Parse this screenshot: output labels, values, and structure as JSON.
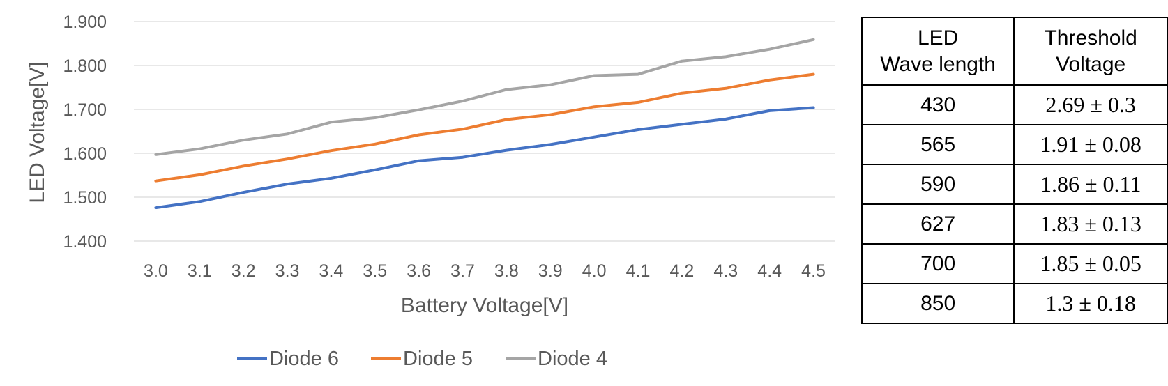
{
  "chart_data": {
    "type": "line",
    "xlabel": "Battery Voltage[V]",
    "ylabel": "LED Voltage[V]",
    "categories": [
      "3.0",
      "3.1",
      "3.2",
      "3.3",
      "3.4",
      "3.5",
      "3.6",
      "3.7",
      "3.8",
      "3.9",
      "4.0",
      "4.1",
      "4.2",
      "4.3",
      "4.4",
      "4.5"
    ],
    "ylim": [
      1.4,
      1.9
    ],
    "yticks": [
      "1.400",
      "1.500",
      "1.600",
      "1.700",
      "1.800",
      "1.900"
    ],
    "grid": true,
    "legend_position": "bottom",
    "series": [
      {
        "name": "Diode 6",
        "color": "#4472C4",
        "values": [
          1.476,
          1.49,
          1.511,
          1.53,
          1.543,
          1.562,
          1.583,
          1.591,
          1.607,
          1.62,
          1.637,
          1.654,
          1.666,
          1.678,
          1.697,
          1.704
        ]
      },
      {
        "name": "Diode 5",
        "color": "#ED7D31",
        "values": [
          1.537,
          1.551,
          1.571,
          1.587,
          1.606,
          1.621,
          1.642,
          1.655,
          1.677,
          1.688,
          1.706,
          1.716,
          1.737,
          1.748,
          1.767,
          1.78
        ]
      },
      {
        "name": "Diode 4",
        "color": "#A5A5A5",
        "values": [
          1.597,
          1.61,
          1.63,
          1.644,
          1.671,
          1.681,
          1.699,
          1.719,
          1.745,
          1.756,
          1.777,
          1.78,
          1.81,
          1.82,
          1.837,
          1.859
        ]
      }
    ]
  },
  "table": {
    "headers": [
      {
        "line1": "LED",
        "line2": "Wave length"
      },
      {
        "line1": "Threshold",
        "line2": "Voltage"
      }
    ],
    "rows": [
      {
        "wavelength": "430",
        "threshold": "2.69 ± 0.3"
      },
      {
        "wavelength": "565",
        "threshold": "1.91 ± 0.08"
      },
      {
        "wavelength": "590",
        "threshold": "1.86 ± 0.11"
      },
      {
        "wavelength": "627",
        "threshold": "1.83 ± 0.13"
      },
      {
        "wavelength": "700",
        "threshold": "1.85 ± 0.05"
      },
      {
        "wavelength": "850",
        "threshold": "1.3 ± 0.18"
      }
    ]
  }
}
